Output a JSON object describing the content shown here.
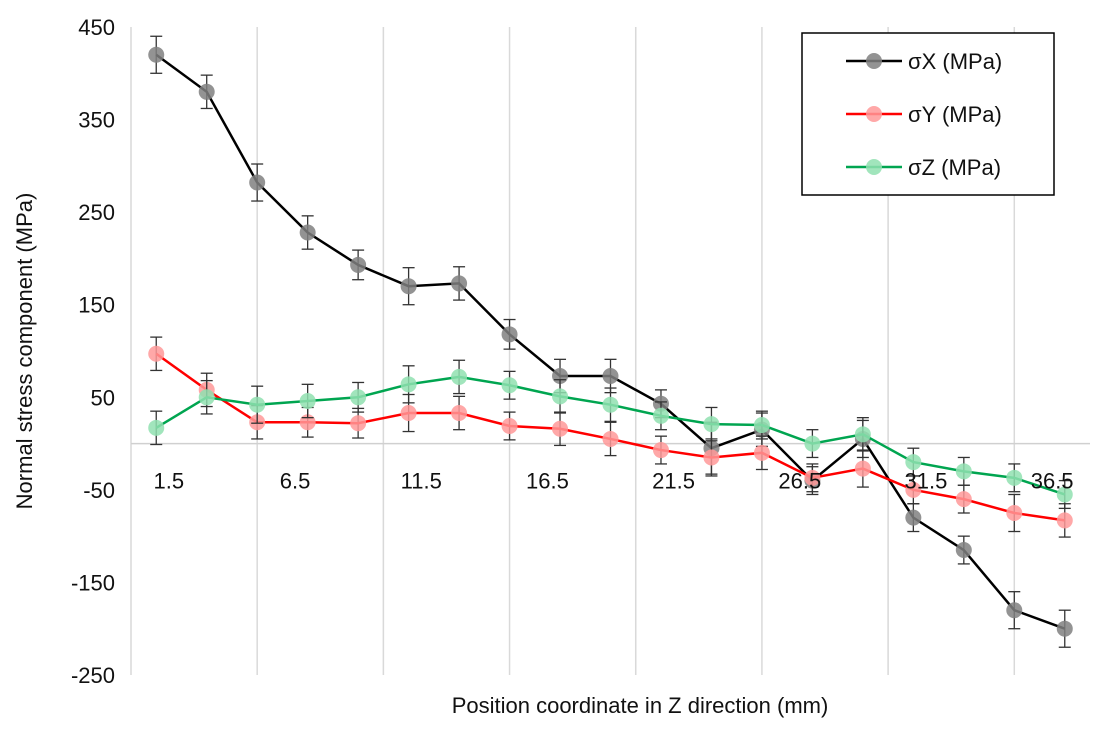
{
  "chart_data": {
    "type": "line",
    "xlabel": "Position coordinate in Z direction (mm)",
    "ylabel": "Normal stress component (MPa)",
    "ylim": [
      -250,
      450
    ],
    "yticks": [
      450,
      350,
      250,
      150,
      50,
      -50,
      -150,
      -250
    ],
    "x_tick_labels": [
      "1.5",
      "6.5",
      "11.5",
      "16.5",
      "21.5",
      "26.5",
      "31.5",
      "36.5"
    ],
    "x": [
      1.5,
      3.5,
      5.5,
      7.5,
      9.5,
      11.5,
      13.5,
      15.5,
      17.5,
      19.5,
      21.5,
      23.5,
      25.5,
      27.5,
      29.5,
      31.5,
      33.5,
      35.5,
      37.5
    ],
    "grid": "vertical",
    "legend_position": "top-right",
    "series": [
      {
        "name": "σX (MPa)",
        "color": "#000000",
        "marker_color": "#808080",
        "values": [
          420,
          380,
          282,
          228,
          193,
          170,
          173,
          118,
          73,
          73,
          43,
          -5,
          15,
          -40,
          5,
          -80,
          -115,
          -180,
          -200
        ],
        "errors": [
          20,
          18,
          20,
          18,
          16,
          20,
          18,
          16,
          18,
          18,
          15,
          28,
          18,
          15,
          20,
          15,
          15,
          20,
          20
        ]
      },
      {
        "name": "σY (MPa)",
        "color": "#ff0000",
        "marker_color": "#ff9999",
        "values": [
          97,
          58,
          23,
          23,
          22,
          33,
          33,
          19,
          16,
          5,
          -7,
          -15,
          -10,
          -37,
          -27,
          -50,
          -60,
          -75,
          -83
        ],
        "errors": [
          18,
          18,
          18,
          16,
          16,
          20,
          18,
          15,
          18,
          18,
          15,
          20,
          18,
          15,
          20,
          15,
          15,
          20,
          18
        ]
      },
      {
        "name": "σZ (MPa)",
        "color": "#00a550",
        "marker_color": "#90e0b0",
        "values": [
          17,
          50,
          42,
          46,
          50,
          64,
          72,
          63,
          51,
          42,
          30,
          21,
          20,
          0,
          10,
          -20,
          -30,
          -37,
          -55
        ],
        "errors": [
          18,
          18,
          20,
          18,
          16,
          20,
          18,
          15,
          18,
          18,
          15,
          18,
          15,
          15,
          18,
          15,
          15,
          15,
          15
        ]
      }
    ]
  }
}
